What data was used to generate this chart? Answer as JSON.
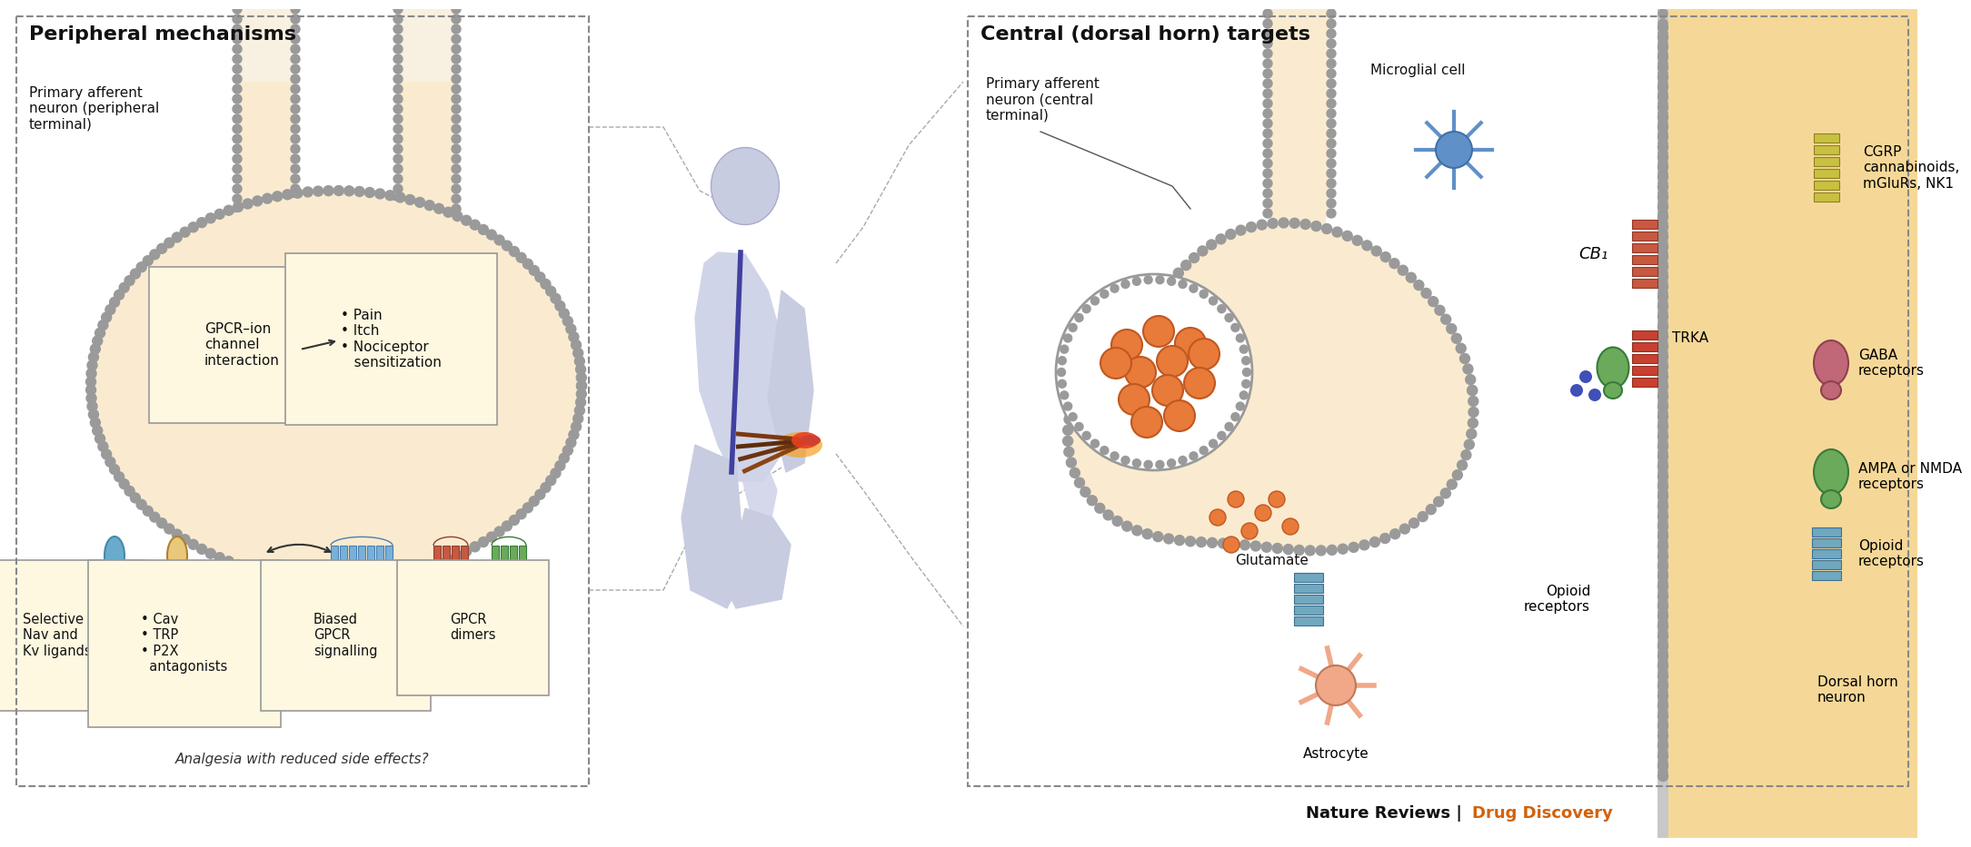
{
  "bg_color": "#ffffff",
  "panel_bg": "#faebd0",
  "dh_bg": "#f5d898",
  "membrane_fill": "#c8c8c8",
  "membrane_dot": "#9a9a9a",
  "box_fill": "#fef8e0",
  "box_edge": "#999999",
  "title_left": "Peripheral mechanisms",
  "title_right": "Central (dorsal horn) targets",
  "footer_black": "Nature Reviews | ",
  "footer_orange": "Drug Discovery",
  "footer_color": "#d4610a",
  "label_afferent_left": "Primary afferent\nneuron (peripheral\nterminal)",
  "label_afferent_right": "Primary afferent\nneuron (central\nterminal)",
  "label_microglial": "Microglial cell",
  "label_gpcr_ion": "GPCR–ion\nchannel\ninteraction",
  "label_pain": "• Pain\n• Itch\n• Nociceptor\n   sensitization",
  "label_nav": "Selective\nNav and\nKv ligands",
  "label_cav": "• Cav\n• TRP\n• P2X\n  antagonists",
  "label_biased": "Biased\nGPCR\nsignalling",
  "label_gpcr_dimers": "GPCR\ndimers",
  "label_analgesia": "Analgesia with reduced side effects?",
  "label_cb1": "CB₁",
  "label_trka": "TRKA",
  "label_glutamate": "Glutamate",
  "label_opioid_l": "Opioid\nreceptors",
  "label_opioid_r": "Opioid\nreceptors",
  "label_astrocyte": "Astrocyte",
  "label_dorsal_horn": "Dorsal horn\nneuron",
  "label_cgrp": "CGRP\ncannabinoids,\nmGluRs, NK1",
  "label_gaba": "GABA\nreceptors",
  "label_ampa": "AMPA or NMDA\nreceptors",
  "col_blue_r": "#6aabcb",
  "col_yellow_r": "#e8c87a",
  "col_blue_ch": "#7ab0d8",
  "col_red_ch": "#c85840",
  "col_green_r": "#6aaa5a",
  "col_pink_r": "#c06878",
  "col_orange": "#e87a3a",
  "col_teal": "#70a8c0",
  "col_yellow_ch": "#c8c040",
  "col_purple": "#8870b8",
  "col_blue_mc": "#6090c8"
}
